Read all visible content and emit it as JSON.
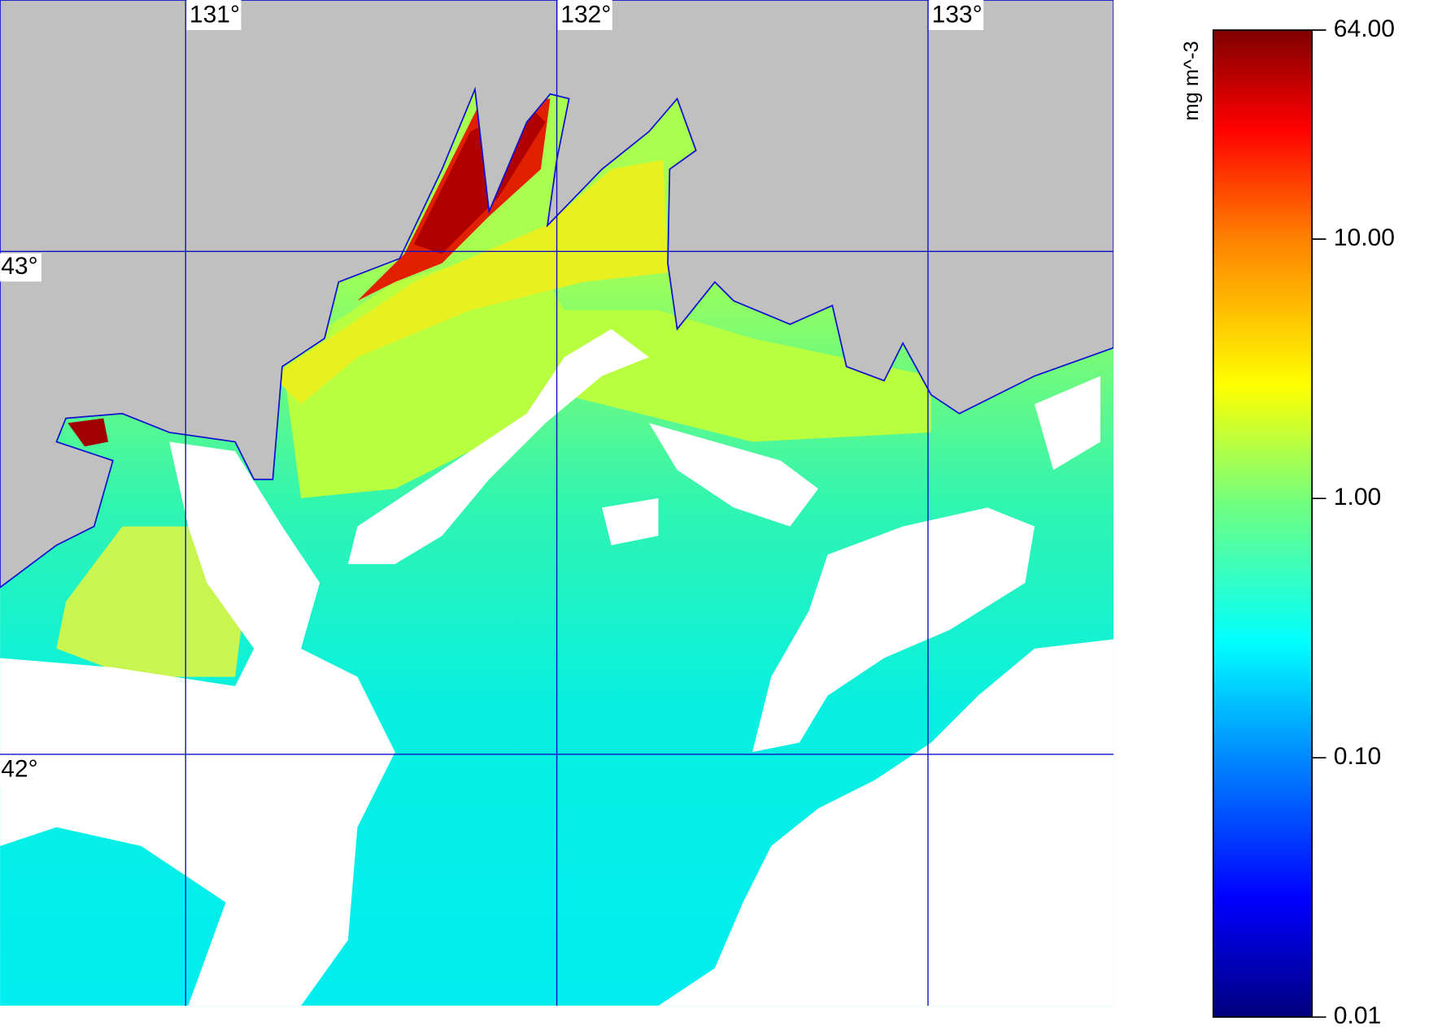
{
  "map": {
    "xlim": [
      130.5,
      133.5
    ],
    "ylim": [
      41.5,
      43.5
    ],
    "lon_ticks": [
      {
        "value": 131,
        "label": "131°"
      },
      {
        "value": 132,
        "label": "132°"
      },
      {
        "value": 133,
        "label": "133°"
      }
    ],
    "lat_ticks": [
      {
        "value": 43,
        "label": "43°"
      },
      {
        "value": 42,
        "label": "42°"
      }
    ],
    "grid": true,
    "grid_color": "#1010c8"
  },
  "colorbar": {
    "label": "mg m^-3",
    "scale": "log",
    "lim": [
      0.01,
      64
    ],
    "ticks": [
      {
        "value": 64,
        "label": "64.00"
      },
      {
        "value": 10,
        "label": "10.00"
      },
      {
        "value": 1,
        "label": "1.00"
      },
      {
        "value": 0.1,
        "label": "0.10"
      },
      {
        "value": 0.01,
        "label": "0.01"
      }
    ]
  }
}
